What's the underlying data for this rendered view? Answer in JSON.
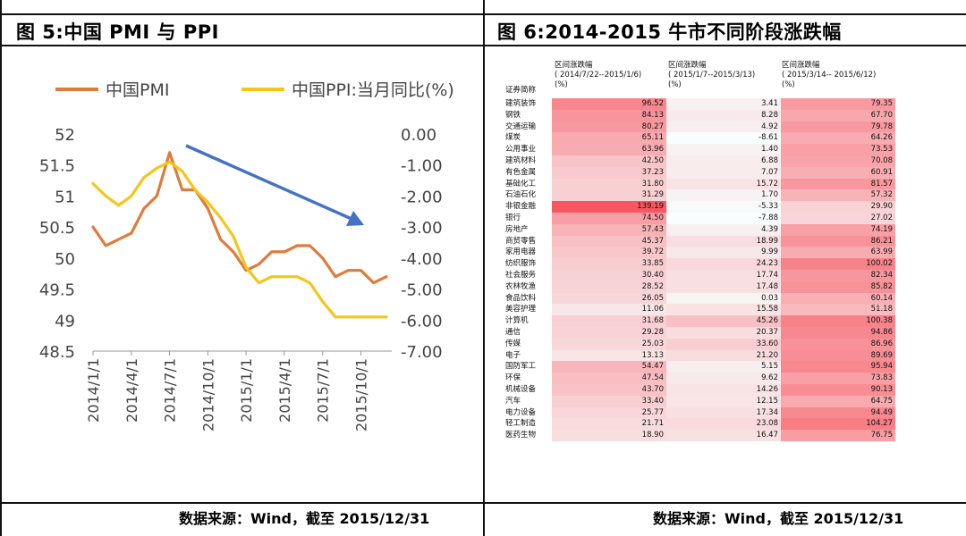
{
  "left_panel": {
    "title": "图 5:中国 PMI 与 PPI",
    "source": "数据来源：Wind，截至 2015/12/31"
  },
  "right_panel": {
    "title": "图 6:2014-2015 牛市不同阶段涨跌幅",
    "source": "数据来源：Wind，截至 2015/12/31"
  },
  "chart_data": [
    {
      "type": "line",
      "title": "图 5:中国 PMI 与 PPI",
      "x": [
        "2014/1/1",
        "2014/2/1",
        "2014/3/1",
        "2014/4/1",
        "2014/5/1",
        "2014/6/1",
        "2014/7/1",
        "2014/8/1",
        "2014/9/1",
        "2014/10/1",
        "2014/11/1",
        "2014/12/1",
        "2015/1/1",
        "2015/2/1",
        "2015/3/1",
        "2015/4/1",
        "2015/5/1",
        "2015/6/1",
        "2015/7/1",
        "2015/8/1",
        "2015/9/1",
        "2015/10/1",
        "2015/11/1",
        "2015/12/1"
      ],
      "x_tick_labels": [
        "2014/1/1",
        "2014/4/1",
        "2014/7/1",
        "2014/10/1",
        "2015/1/1",
        "2015/4/1",
        "2015/7/1",
        "2015/10/1"
      ],
      "series": [
        {
          "name": "中国PMI",
          "axis": "left",
          "color": "#E07B39",
          "values": [
            50.5,
            50.2,
            50.3,
            50.4,
            50.8,
            51.0,
            51.7,
            51.1,
            51.1,
            50.8,
            50.3,
            50.1,
            49.8,
            49.9,
            50.1,
            50.1,
            50.2,
            50.2,
            50.0,
            49.7,
            49.8,
            49.8,
            49.6,
            49.7
          ]
        },
        {
          "name": "中国PPI:当月同比(%)",
          "axis": "right",
          "color": "#F5C518",
          "values": [
            -1.6,
            -2.0,
            -2.3,
            -2.0,
            -1.4,
            -1.1,
            -0.9,
            -1.2,
            -1.8,
            -2.2,
            -2.7,
            -3.3,
            -4.3,
            -4.8,
            -4.6,
            -4.6,
            -4.6,
            -4.8,
            -5.4,
            -5.9,
            -5.9,
            -5.9,
            -5.9,
            -5.9
          ]
        }
      ],
      "yleft": {
        "ylim": [
          48.5,
          52
        ],
        "ticks": [
          "52",
          "51.5",
          "51",
          "50.5",
          "50",
          "49.5",
          "49",
          "48.5"
        ]
      },
      "yright": {
        "ylim": [
          -7,
          0
        ],
        "ticks": [
          "0.00",
          "-1.00",
          "-2.00",
          "-3.00",
          "-4.00",
          "-5.00",
          "-6.00",
          "-7.00"
        ]
      },
      "annotation": "blue arrow pointing down-right (downtrend)",
      "legend": "top"
    },
    {
      "type": "table",
      "title": "图 6:2014-2015 牛市不同阶段涨跌幅",
      "row_header": "证券简称",
      "columns": [
        {
          "header": "区间涨跌幅\n( 2014/7/22--2015/1/6)\n(%)"
        },
        {
          "header": "区间涨跌幅\n( 2015/1/7--2015/3/13)\n(%)"
        },
        {
          "header": "区间涨跌幅\n( 2015/3/14-- 2015/6/12)\n(%)"
        }
      ],
      "rows": [
        {
          "name": "建筑装饰",
          "values": [
            "96.52",
            "3.41",
            "79.35"
          ]
        },
        {
          "name": "钢铁",
          "values": [
            "84.13",
            "8.28",
            "67.70"
          ]
        },
        {
          "name": "交通运输",
          "values": [
            "80.27",
            "4.92",
            "79.78"
          ]
        },
        {
          "name": "煤炭",
          "values": [
            "65.11",
            "-8.61",
            "64.26"
          ]
        },
        {
          "name": "公用事业",
          "values": [
            "63.96",
            "1.40",
            "73.53"
          ]
        },
        {
          "name": "建筑材料",
          "values": [
            "42.50",
            "6.88",
            "70.08"
          ]
        },
        {
          "name": "有色金属",
          "values": [
            "37.23",
            "7.07",
            "60.91"
          ]
        },
        {
          "name": "基础化工",
          "values": [
            "31.80",
            "15.72",
            "81.57"
          ]
        },
        {
          "name": "石油石化",
          "values": [
            "31.29",
            "1.70",
            "57.32"
          ]
        },
        {
          "name": "非银金融",
          "values": [
            "139.19",
            "-5.33",
            "29.90"
          ]
        },
        {
          "name": "银行",
          "values": [
            "74.50",
            "-7.88",
            "27.02"
          ]
        },
        {
          "name": "房地产",
          "values": [
            "57.43",
            "4.39",
            "74.19"
          ]
        },
        {
          "name": "商贸零售",
          "values": [
            "45.37",
            "18.99",
            "86.21"
          ]
        },
        {
          "name": "家用电器",
          "values": [
            "39.72",
            "9.99",
            "63.99"
          ]
        },
        {
          "name": "纺织服饰",
          "values": [
            "33.85",
            "24.23",
            "100.02"
          ]
        },
        {
          "name": "社会服务",
          "values": [
            "30.40",
            "17.74",
            "82.34"
          ]
        },
        {
          "name": "农林牧渔",
          "values": [
            "28.52",
            "17.48",
            "85.82"
          ]
        },
        {
          "name": "食品饮料",
          "values": [
            "26.05",
            "0.03",
            "60.14"
          ]
        },
        {
          "name": "美容护理",
          "values": [
            "11.06",
            "15.58",
            "51.18"
          ]
        },
        {
          "name": "计算机",
          "values": [
            "31.68",
            "45.26",
            "100.38"
          ]
        },
        {
          "name": "通信",
          "values": [
            "29.28",
            "20.37",
            "94.86"
          ]
        },
        {
          "name": "传媒",
          "values": [
            "25.03",
            "33.60",
            "86.96"
          ]
        },
        {
          "name": "电子",
          "values": [
            "13.13",
            "21.20",
            "89.69"
          ]
        },
        {
          "name": "国防军工",
          "values": [
            "54.47",
            "5.15",
            "95.94"
          ]
        },
        {
          "name": "环保",
          "values": [
            "47.54",
            "9.62",
            "73.83"
          ]
        },
        {
          "name": "机械设备",
          "values": [
            "43.70",
            "14.26",
            "90.13"
          ]
        },
        {
          "name": "汽车",
          "values": [
            "33.40",
            "12.15",
            "64.75"
          ]
        },
        {
          "name": "电力设备",
          "values": [
            "25.77",
            "17.34",
            "94.49"
          ]
        },
        {
          "name": "轻工制造",
          "values": [
            "21.71",
            "23.08",
            "104.27"
          ]
        },
        {
          "name": "医药生物",
          "values": [
            "18.90",
            "16.47",
            "76.75"
          ]
        }
      ]
    }
  ]
}
